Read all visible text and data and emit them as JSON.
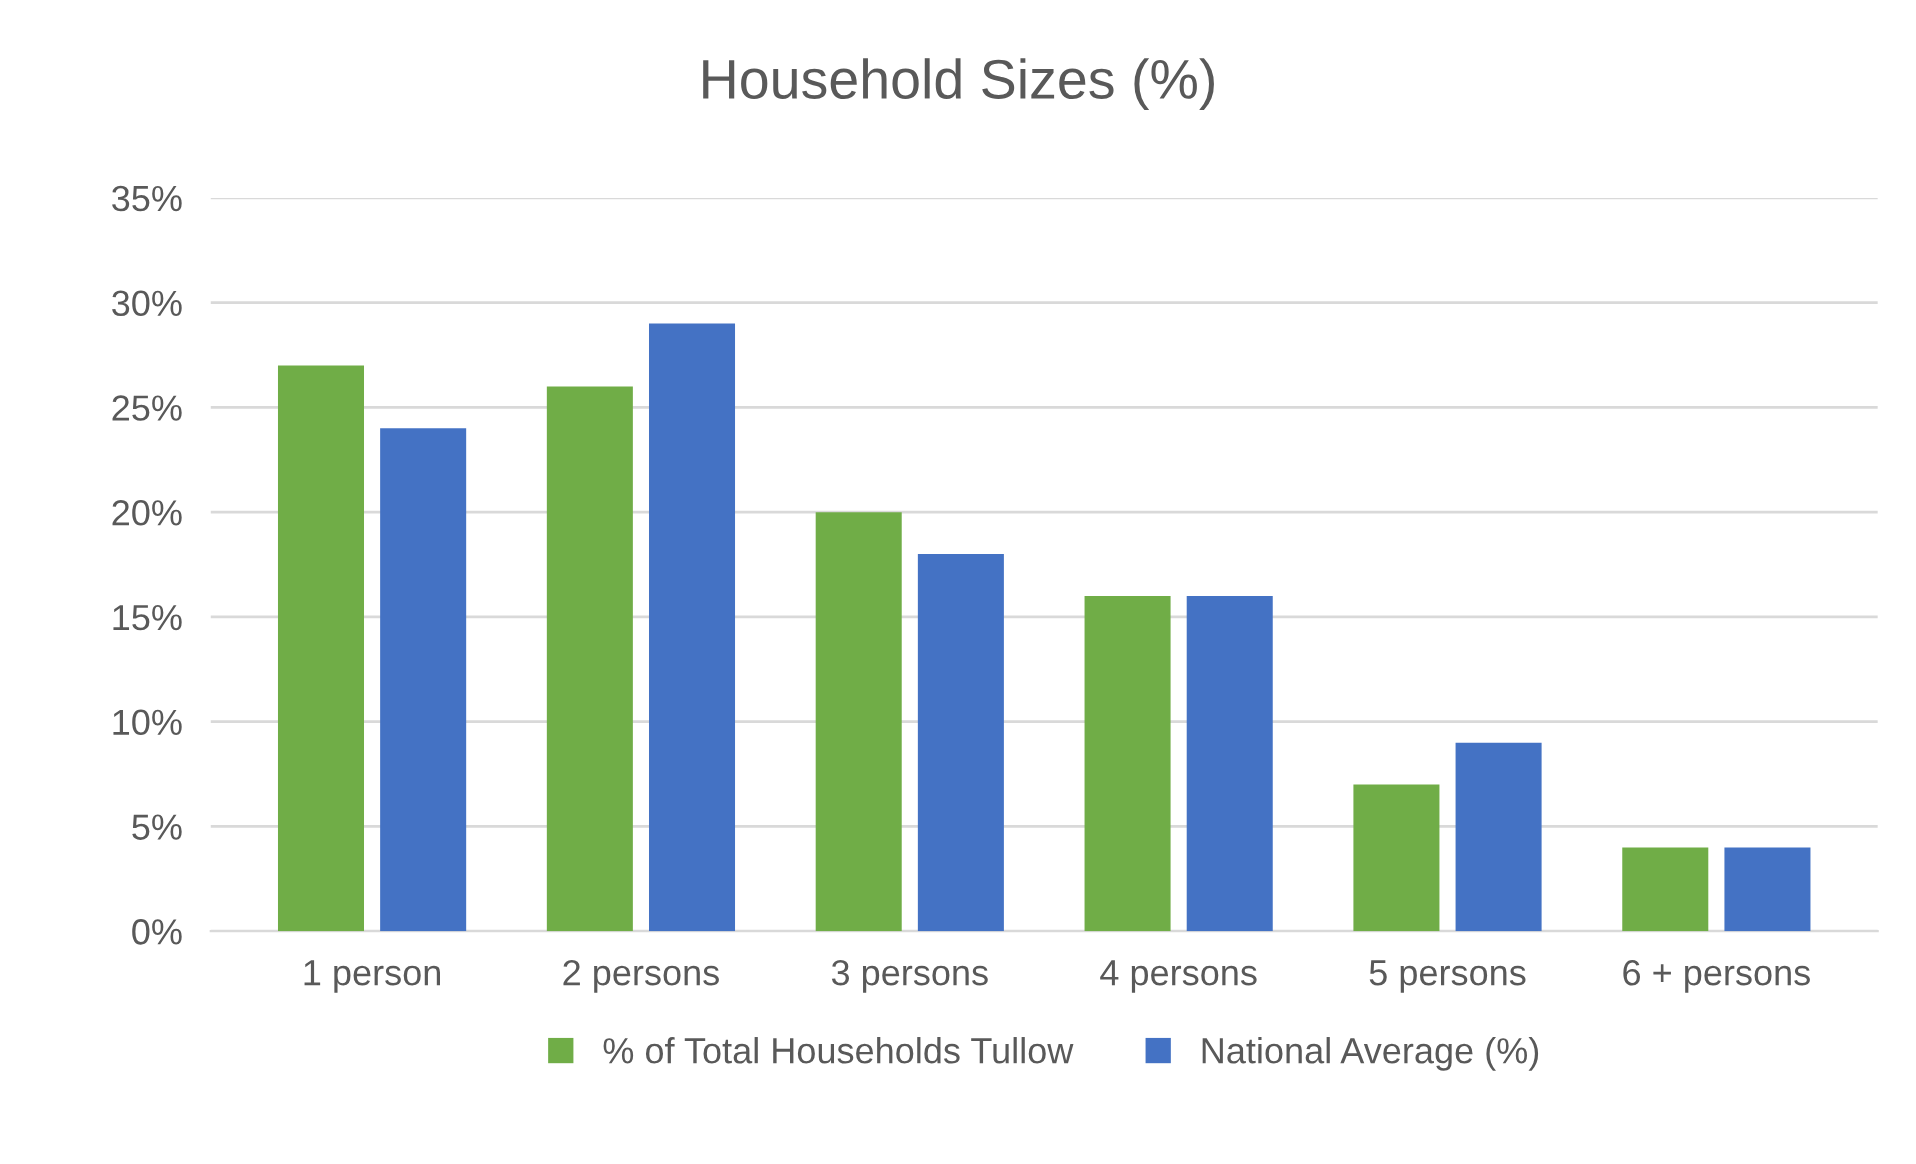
{
  "chart_data": {
    "type": "bar",
    "title": "Household Sizes (%)",
    "categories": [
      "1 person",
      "2 persons",
      "3 persons",
      "4 persons",
      "5 persons",
      "6 + persons"
    ],
    "series": [
      {
        "name": "% of Total Households Tullow",
        "color": "#70ad47",
        "values": [
          27,
          26,
          20,
          16,
          7,
          4
        ]
      },
      {
        "name": "National Average (%)",
        "color": "#4472c4",
        "values": [
          24,
          29,
          18,
          16,
          9,
          4
        ]
      }
    ],
    "ylim": [
      0,
      35
    ],
    "yticks": [
      {
        "value": 0,
        "label": "0%"
      },
      {
        "value": 5,
        "label": "5%"
      },
      {
        "value": 10,
        "label": "10%"
      },
      {
        "value": 15,
        "label": "15%"
      },
      {
        "value": 20,
        "label": "20%"
      },
      {
        "value": 25,
        "label": "25%"
      },
      {
        "value": 30,
        "label": "30%"
      },
      {
        "value": 35,
        "label": "35%"
      }
    ],
    "grid": "y",
    "legend": "bottom"
  }
}
